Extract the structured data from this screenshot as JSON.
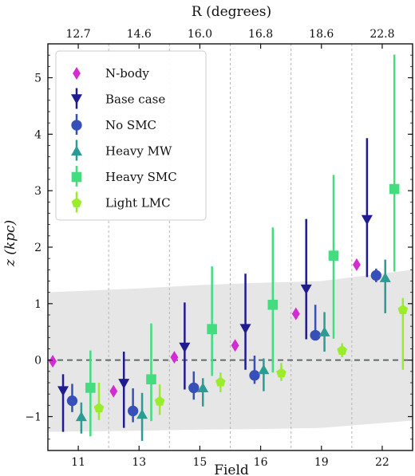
{
  "chart_data": {
    "type": "errorbar",
    "xlabel": "Field",
    "ylabel": "z (kpc)",
    "top_axis_label": "R (degrees)",
    "categories": [
      "11",
      "13",
      "15",
      "16",
      "19",
      "22"
    ],
    "top_ticks": [
      "12.7",
      "14.6",
      "16.0",
      "16.8",
      "18.6",
      "22.8"
    ],
    "ylim": [
      -1.6,
      5.6
    ],
    "yticks": [
      -1,
      0,
      1,
      2,
      3,
      4,
      5
    ],
    "reference_line": {
      "y": 0,
      "style": "dashed",
      "color": "#5f6b6b"
    },
    "shaded_band": {
      "color": "#e6e6e6",
      "upper": [
        1.2,
        1.27,
        1.33,
        1.37,
        1.4,
        1.6
      ],
      "lower": [
        -1.27,
        -1.25,
        -1.23,
        -1.22,
        -1.2,
        -1.07
      ]
    },
    "legend_position": "top-left",
    "series": [
      {
        "name": "N-body",
        "marker": "diamond",
        "color": "#d22cd2",
        "values": [
          -0.02,
          -0.55,
          0.05,
          0.26,
          0.82,
          1.69
        ]
      },
      {
        "name": "Base case",
        "marker": "down-triangle",
        "color": "#1f1c8f",
        "values": [
          -0.55,
          -0.42,
          0.22,
          0.55,
          1.25,
          2.48
        ],
        "err_low": [
          -1.27,
          -1.2,
          -0.52,
          -0.17,
          0.37,
          1.47
        ],
        "err_high": [
          -0.25,
          0.15,
          1.02,
          1.53,
          2.5,
          3.93
        ],
        "limit": true
      },
      {
        "name": "No SMC",
        "marker": "circle",
        "color": "#3750b8",
        "values": [
          -0.72,
          -0.9,
          -0.49,
          -0.27,
          0.44,
          1.5
        ],
        "err_low": [
          -0.92,
          -1.1,
          -0.7,
          -0.42,
          0.36,
          1.38
        ],
        "err_high": [
          -0.42,
          -0.5,
          -0.2,
          0.08,
          0.98,
          1.62
        ]
      },
      {
        "name": "Heavy MW",
        "marker": "up-triangle",
        "color": "#2b9b93",
        "values": [
          -1.0,
          -0.96,
          -0.49,
          -0.17,
          0.5,
          1.46
        ],
        "err_low": [
          -1.3,
          -1.43,
          -0.82,
          -0.55,
          0.15,
          0.83
        ],
        "err_high": [
          -0.75,
          -0.58,
          -0.32,
          0.03,
          0.85,
          1.78
        ]
      },
      {
        "name": "Heavy SMC",
        "marker": "square",
        "color": "#43dc7f",
        "values": [
          -0.49,
          -0.34,
          0.55,
          0.98,
          1.85,
          3.03
        ],
        "err_low": [
          -1.35,
          -1.08,
          -0.28,
          -0.22,
          0.38,
          1.57
        ],
        "err_high": [
          0.17,
          0.65,
          1.66,
          2.35,
          3.28,
          5.41
        ]
      },
      {
        "name": "Light LMC",
        "marker": "pentagon",
        "color": "#9bec2a",
        "values": [
          -0.85,
          -0.73,
          -0.39,
          -0.23,
          0.17,
          0.89
        ],
        "err_low": [
          -1.06,
          -0.97,
          -0.57,
          -0.37,
          0.05,
          -0.17
        ],
        "err_high": [
          -0.4,
          -0.43,
          -0.22,
          -0.05,
          0.3,
          1.1
        ]
      }
    ]
  }
}
